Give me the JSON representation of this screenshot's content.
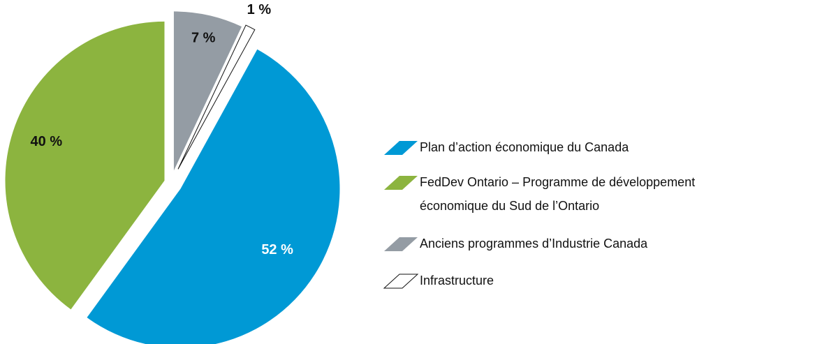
{
  "chart_data": {
    "type": "pie",
    "categories": [
      "Anciens programmes d’Industrie Canada",
      "Infrastructure",
      "Plan d’action économique du Canada",
      "FedDev Ontario – Programme de développement économique du Sud de l’Ontario"
    ],
    "values": [
      7,
      1,
      52,
      40
    ],
    "value_labels": [
      "7 %",
      "1 %",
      "52 %",
      "40 %"
    ],
    "colors": [
      "#949ca4",
      "#ffffff",
      "#0099d5",
      "#8cb43f"
    ],
    "legend_order": [
      2,
      3,
      0,
      1
    ],
    "legend": "right"
  }
}
